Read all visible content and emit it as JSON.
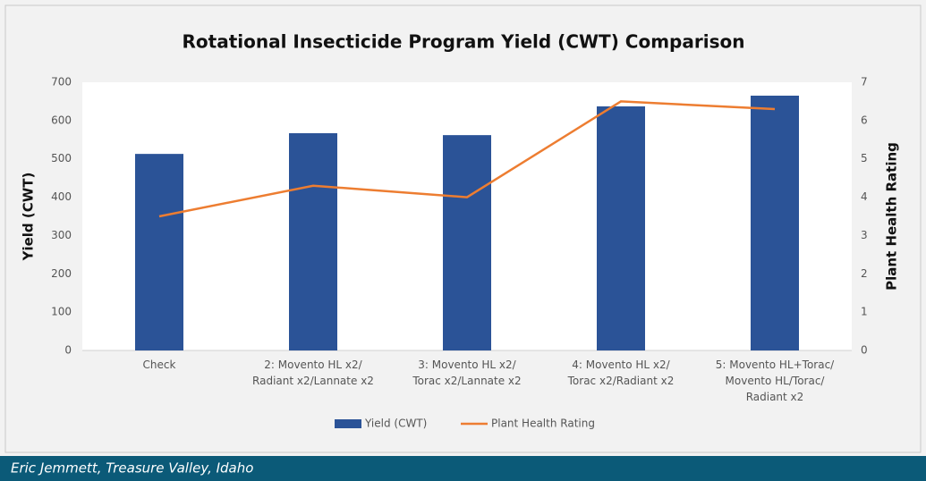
{
  "chart_data": {
    "type": "bar_line",
    "title": "Rotational Insecticide Program Yield (CWT) Comparison",
    "ylabel": "Yield (CWT)",
    "y2label": "Plant Health Rating",
    "categories": [
      "Check",
      "2: Movento HL x2/\nRadiant x2/Lannate x2",
      "3: Movento HL x2/\nTorac x2/Lannate x2",
      "4: Movento HL x2/\nTorac x2/Radiant x2",
      "5: Movento HL+Torac/\nMovento HL/Torac/\nRadiant x2"
    ],
    "series": [
      {
        "name": "Yield (CWT)",
        "color": "#2b5397",
        "values": [
          513,
          567,
          562,
          637,
          665
        ]
      },
      {
        "name": "Plant Health Rating",
        "color": "#ed7d31",
        "axis": "y2",
        "values": [
          3.5,
          4.3,
          4.0,
          6.5,
          6.3
        ]
      }
    ],
    "ylim": [
      0,
      700
    ],
    "yticks": [
      0,
      100,
      200,
      300,
      400,
      500,
      600,
      700
    ],
    "y2lim": [
      0,
      7
    ],
    "y2ticks": [
      0,
      1,
      2,
      3,
      4,
      5,
      6,
      7
    ],
    "legend": "bottom"
  },
  "footer": "Eric Jemmett, Treasure Valley, Idaho"
}
